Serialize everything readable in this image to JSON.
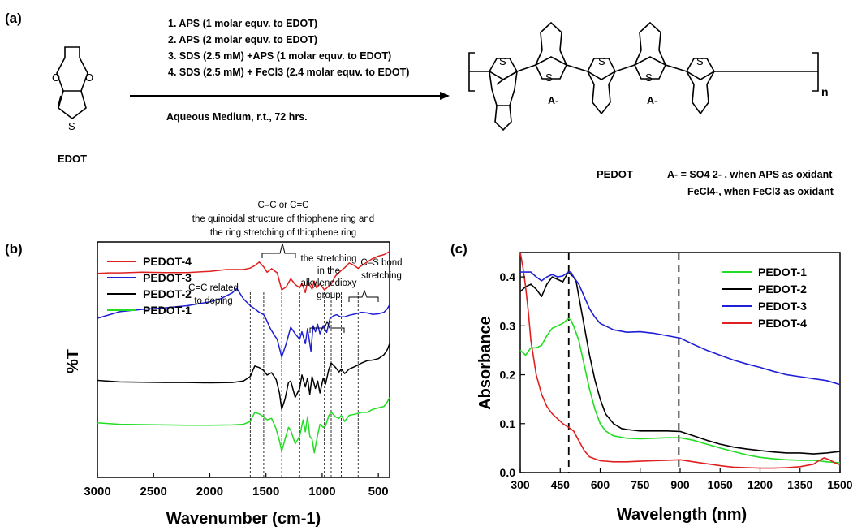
{
  "panels": {
    "a": "(a)",
    "b": "(b)",
    "c": "(c)"
  },
  "scheme": {
    "conditions": [
      "1. APS (1 molar equv. to EDOT)",
      "2. APS (2 molar equv. to EDOT)",
      "3. SDS (2.5 mM) +APS (1 molar equv. to EDOT)",
      "4. SDS (2.5 mM) + FeCl3 (2.4 molar equv. to EDOT)"
    ],
    "medium": "Aqueous Medium, r.t., 72 hrs.",
    "monomer": "EDOT",
    "polymer": "PEDOT",
    "counterion": "A-",
    "repeat": "n",
    "anion_aps": "A- = SO4 2- , when APS as oxidant",
    "anion_fecl3": "FeCl4-, when FeCl3 as oxidant"
  },
  "colors": {
    "PEDOT-1": "#22dd22",
    "PEDOT-2": "#000000",
    "PEDOT-3": "#1f1fd6",
    "PEDOT-4": "#e02020"
  },
  "chart_data": [
    {
      "type": "line",
      "panel": "(b)",
      "xlabel": "Wavenumber (cm-1)",
      "ylabel": "%T",
      "xlim": [
        3000,
        400
      ],
      "xticks": [
        3000,
        2500,
        2000,
        1500,
        1000,
        500
      ],
      "y_ticks_shown": false,
      "legend_position": "top-left",
      "legend": [
        "PEDOT-4",
        "PEDOT-3",
        "PEDOT-2",
        "PEDOT-1"
      ],
      "annotations": [
        {
          "text": "C–C or C=C",
          "line2": "the quinoidal structure of thiophene ring and",
          "line3": "the ring stretching of thiophene ring"
        },
        {
          "text": "C=C related",
          "line2": "to doping"
        },
        {
          "text": "the stretching",
          "line2": "in the",
          "line3": "alkylenedioxy",
          "line4": "group"
        },
        {
          "text": "C–S bond",
          "line2": "stretching"
        }
      ],
      "marker_lines_x": [
        1640,
        1520,
        1360,
        1200,
        1090,
        980,
        920,
        830,
        680
      ],
      "series": [
        {
          "name": "PEDOT-4",
          "x": [
            3000,
            2900,
            2800,
            2600,
            2400,
            2200,
            2000,
            1850,
            1700,
            1640,
            1600,
            1560,
            1520,
            1490,
            1450,
            1400,
            1360,
            1320,
            1280,
            1240,
            1200,
            1180,
            1150,
            1130,
            1090,
            1070,
            1050,
            1020,
            980,
            960,
            920,
            880,
            830,
            800,
            760,
            720,
            680,
            650,
            600,
            550,
            500,
            450,
            420,
            400
          ],
          "y": [
            70.0,
            70.2,
            70.2,
            70.4,
            70.3,
            70.3,
            70.7,
            71.3,
            71.3,
            71.8,
            72.6,
            73.8,
            72.2,
            70.4,
            71.6,
            70.2,
            64.5,
            65.5,
            68.2,
            66.3,
            65.2,
            66.7,
            63.6,
            67.4,
            64.7,
            67.4,
            65.2,
            66.5,
            64.5,
            65.1,
            66.4,
            69.2,
            71.0,
            71.9,
            73.5,
            72.8,
            71.7,
            72.6,
            73.8,
            75.0,
            75.8,
            76.3,
            76.9,
            77.4
          ]
        },
        {
          "name": "PEDOT-3",
          "x": [
            3000,
            2800,
            2600,
            2400,
            2200,
            2000,
            1900,
            1800,
            1760,
            1700,
            1660,
            1640,
            1600,
            1560,
            1520,
            1500,
            1460,
            1420,
            1400,
            1360,
            1320,
            1280,
            1240,
            1200,
            1180,
            1150,
            1130,
            1100,
            1080,
            1060,
            1040,
            1020,
            990,
            960,
            930,
            900,
            870,
            840,
            800,
            760,
            700,
            650,
            600,
            550,
            500,
            450,
            420,
            400
          ],
          "y": [
            55.0,
            57.2,
            58.0,
            58.5,
            59.2,
            60.5,
            61.6,
            63.5,
            65.0,
            61.5,
            60.0,
            59.2,
            58.2,
            57.0,
            56.2,
            54.8,
            51.5,
            49.0,
            48.0,
            42.0,
            46.5,
            52.0,
            49.8,
            48.0,
            50.5,
            46.5,
            51.5,
            44.0,
            52.5,
            50.5,
            53.0,
            49.8,
            52.5,
            50.3,
            55.0,
            55.8,
            56.2,
            55.5,
            55.5,
            56.0,
            56.5,
            57.0,
            56.8,
            56.3,
            56.5,
            57.0,
            58.2,
            59.5
          ]
        },
        {
          "name": "PEDOT-2",
          "x": [
            3000,
            2800,
            2600,
            2400,
            2200,
            2000,
            1800,
            1700,
            1640,
            1600,
            1560,
            1520,
            1490,
            1450,
            1410,
            1380,
            1360,
            1330,
            1300,
            1280,
            1240,
            1200,
            1180,
            1150,
            1130,
            1110,
            1090,
            1060,
            1040,
            1020,
            990,
            970,
            940,
            920,
            880,
            850,
            830,
            800,
            760,
            700,
            650,
            600,
            550,
            500,
            450,
            420,
            400
          ],
          "y": [
            34.2,
            33.7,
            33.6,
            33.5,
            33.5,
            33.4,
            33.5,
            34.0,
            35.5,
            39.0,
            38.5,
            37.5,
            36.0,
            36.8,
            34.5,
            30.0,
            24.5,
            28.0,
            33.5,
            34.0,
            28.5,
            31.5,
            36.0,
            32.0,
            35.0,
            29.5,
            35.5,
            31.5,
            34.0,
            30.0,
            35.0,
            33.0,
            38.0,
            40.0,
            38.5,
            37.0,
            38.0,
            36.5,
            38.0,
            39.0,
            40.0,
            40.8,
            41.0,
            41.5,
            42.8,
            44.5,
            46.5
          ]
        },
        {
          "name": "PEDOT-1",
          "x": [
            3000,
            2800,
            2600,
            2400,
            2200,
            2000,
            1800,
            1700,
            1640,
            1600,
            1560,
            1520,
            1490,
            1450,
            1410,
            1380,
            1360,
            1330,
            1300,
            1280,
            1240,
            1200,
            1170,
            1150,
            1130,
            1110,
            1090,
            1070,
            1040,
            1020,
            990,
            970,
            940,
            920,
            880,
            850,
            830,
            800,
            760,
            700,
            650,
            600,
            550,
            500,
            450,
            420,
            400
          ],
          "y": [
            20.0,
            19.5,
            19.4,
            19.3,
            19.2,
            19.2,
            19.3,
            19.5,
            20.5,
            23.5,
            23.0,
            22.0,
            21.0,
            21.5,
            18.0,
            14.0,
            10.5,
            14.5,
            18.5,
            17.5,
            13.0,
            15.5,
            21.0,
            17.0,
            22.0,
            15.5,
            14.5,
            10.0,
            16.0,
            19.5,
            18.5,
            19.0,
            22.5,
            23.5,
            22.0,
            21.5,
            22.5,
            20.5,
            22.5,
            23.0,
            23.5,
            23.5,
            24.5,
            25.0,
            25.5,
            27.0,
            28.5
          ]
        }
      ]
    },
    {
      "type": "line",
      "panel": "(c)",
      "xlabel": "Wavelength (nm)",
      "ylabel": "Absorbance",
      "xlim": [
        300,
        1500
      ],
      "ylim": [
        0.0,
        0.45
      ],
      "xticks": [
        300,
        450,
        600,
        750,
        900,
        1050,
        1200,
        1350,
        1500
      ],
      "yticks": [
        0.0,
        0.1,
        0.2,
        0.3,
        0.4
      ],
      "vertical_dashed_lines_x": [
        482,
        895
      ],
      "legend_position": "top-right",
      "legend": [
        "PEDOT-1",
        "PEDOT-2",
        "PEDOT-3",
        "PEDOT-4"
      ],
      "series": [
        {
          "name": "PEDOT-1",
          "x": [
            300,
            320,
            340,
            360,
            380,
            400,
            420,
            440,
            460,
            480,
            490,
            500,
            520,
            540,
            560,
            580,
            600,
            620,
            650,
            680,
            700,
            750,
            800,
            850,
            900,
            950,
            1000,
            1050,
            1100,
            1150,
            1200,
            1250,
            1300,
            1350,
            1400,
            1450,
            1500
          ],
          "y": [
            0.25,
            0.24,
            0.255,
            0.255,
            0.26,
            0.28,
            0.295,
            0.3,
            0.305,
            0.315,
            0.312,
            0.3,
            0.27,
            0.22,
            0.17,
            0.13,
            0.1,
            0.085,
            0.075,
            0.072,
            0.07,
            0.069,
            0.07,
            0.071,
            0.071,
            0.066,
            0.058,
            0.05,
            0.043,
            0.036,
            0.031,
            0.028,
            0.026,
            0.025,
            0.025,
            0.022,
            0.02
          ]
        },
        {
          "name": "PEDOT-2",
          "x": [
            300,
            320,
            340,
            360,
            380,
            400,
            420,
            440,
            460,
            480,
            500,
            510,
            520,
            540,
            560,
            580,
            600,
            620,
            650,
            680,
            700,
            750,
            800,
            850,
            900,
            950,
            1000,
            1050,
            1100,
            1150,
            1200,
            1250,
            1300,
            1350,
            1400,
            1450,
            1500
          ],
          "y": [
            0.37,
            0.38,
            0.385,
            0.375,
            0.36,
            0.385,
            0.4,
            0.395,
            0.39,
            0.41,
            0.4,
            0.39,
            0.36,
            0.3,
            0.24,
            0.19,
            0.15,
            0.12,
            0.1,
            0.09,
            0.088,
            0.085,
            0.085,
            0.085,
            0.084,
            0.075,
            0.066,
            0.058,
            0.052,
            0.048,
            0.045,
            0.042,
            0.04,
            0.04,
            0.038,
            0.04,
            0.043
          ]
        },
        {
          "name": "PEDOT-3",
          "x": [
            300,
            320,
            340,
            360,
            380,
            400,
            420,
            440,
            460,
            480,
            490,
            500,
            520,
            540,
            560,
            580,
            600,
            650,
            700,
            750,
            800,
            850,
            900,
            950,
            1000,
            1050,
            1100,
            1150,
            1200,
            1250,
            1300,
            1350,
            1400,
            1450,
            1500
          ],
          "y": [
            0.41,
            0.41,
            0.41,
            0.4,
            0.392,
            0.4,
            0.405,
            0.4,
            0.402,
            0.41,
            0.41,
            0.4,
            0.385,
            0.36,
            0.335,
            0.318,
            0.305,
            0.292,
            0.287,
            0.288,
            0.285,
            0.28,
            0.275,
            0.262,
            0.25,
            0.24,
            0.23,
            0.222,
            0.215,
            0.207,
            0.2,
            0.196,
            0.192,
            0.188,
            0.18
          ]
        },
        {
          "name": "PEDOT-4",
          "x": [
            300,
            310,
            320,
            330,
            340,
            360,
            380,
            400,
            420,
            440,
            460,
            480,
            500,
            520,
            540,
            560,
            600,
            650,
            700,
            750,
            800,
            850,
            900,
            950,
            1000,
            1050,
            1100,
            1150,
            1200,
            1250,
            1300,
            1350,
            1400,
            1420,
            1440,
            1460,
            1480,
            1500
          ],
          "y": [
            0.45,
            0.42,
            0.38,
            0.33,
            0.27,
            0.2,
            0.16,
            0.135,
            0.12,
            0.11,
            0.1,
            0.093,
            0.085,
            0.065,
            0.045,
            0.032,
            0.024,
            0.022,
            0.022,
            0.023,
            0.024,
            0.025,
            0.026,
            0.022,
            0.018,
            0.014,
            0.011,
            0.01,
            0.009,
            0.009,
            0.01,
            0.012,
            0.017,
            0.024,
            0.03,
            0.026,
            0.02,
            0.016
          ]
        }
      ]
    }
  ]
}
